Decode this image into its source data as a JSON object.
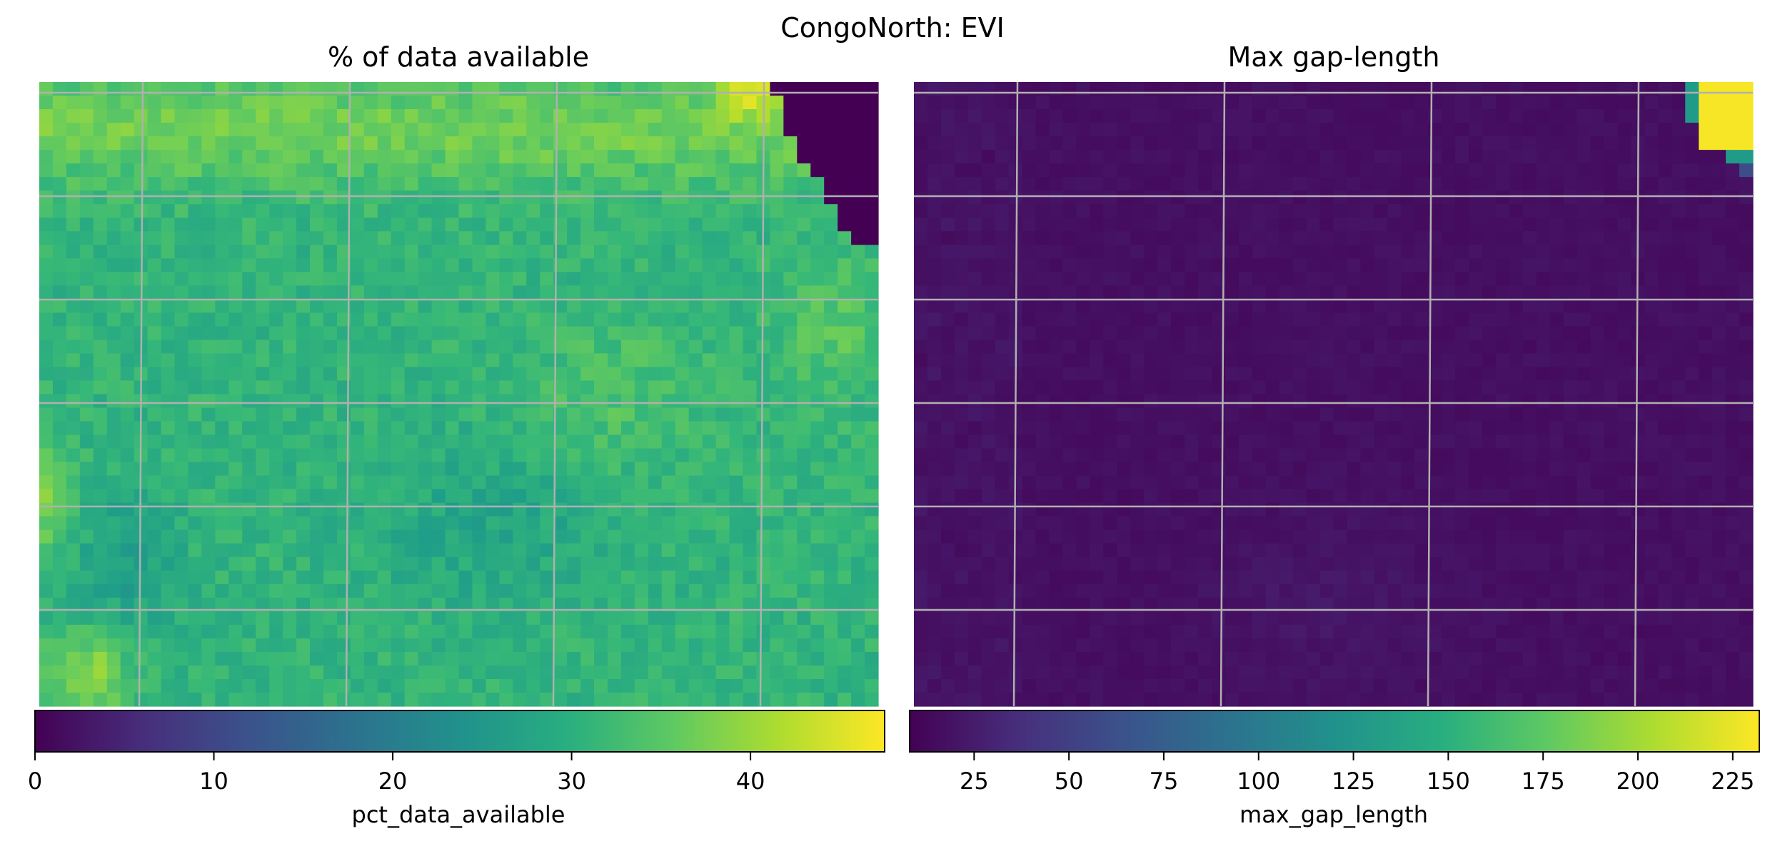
{
  "chart_data": {
    "suptitle": "CongoNorth: EVI",
    "panels": [
      {
        "type": "heatmap",
        "title": "% of data available",
        "colormap": "viridis",
        "grid": true,
        "colorbar": {
          "label": "pct_data_available",
          "range": [
            0,
            47.5
          ],
          "ticks": [
            0,
            10,
            20,
            30,
            40
          ],
          "tick_labels": [
            "0",
            "10",
            "20",
            "30",
            "40"
          ]
        },
        "rows": 46,
        "cols": 62,
        "typical_value_range": [
          24,
          38
        ],
        "features": [
          {
            "region": "top-right corner",
            "value": 0,
            "note": "no data (masked diagonal corner)"
          },
          {
            "region": "top edge near right",
            "value": 46
          },
          {
            "region": "upper band",
            "value": 39
          },
          {
            "region": "right edge mid-upper",
            "value": 43
          },
          {
            "region": "bottom-left corner",
            "value": 44
          },
          {
            "region": "left edge lower-middle",
            "value": 43
          }
        ]
      },
      {
        "type": "heatmap",
        "title": "Max gap-length",
        "colormap": "viridis",
        "grid": true,
        "colorbar": {
          "label": "max_gap_length",
          "range": [
            8,
            232
          ],
          "ticks": [
            25,
            50,
            75,
            100,
            125,
            150,
            175,
            200,
            225
          ],
          "tick_labels": [
            "25",
            "50",
            "75",
            "100",
            "125",
            "150",
            "175",
            "200",
            "225"
          ]
        },
        "rows": 46,
        "cols": 62,
        "typical_value_range": [
          10,
          25
        ],
        "features": [
          {
            "region": "top-right corner",
            "value": 230,
            "note": "maximum gap where data is missing"
          },
          {
            "region": "top-right diagonal edge",
            "value": 130
          }
        ]
      }
    ]
  }
}
